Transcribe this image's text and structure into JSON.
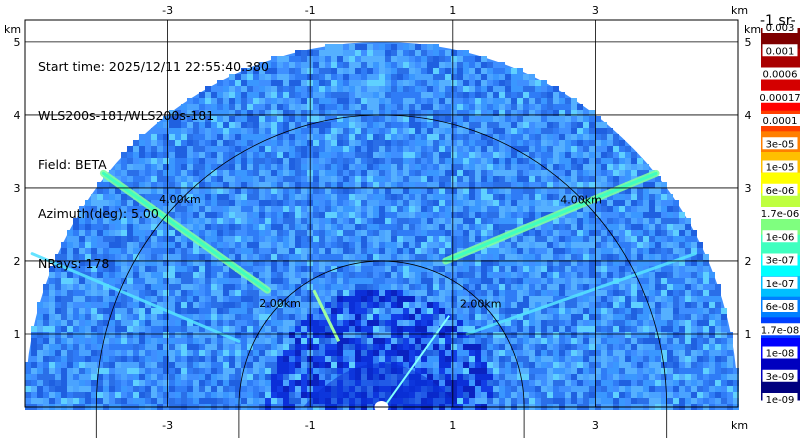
{
  "info": {
    "start_time": "Start time: 2025/12/11 22:55:40.380",
    "instrument": "WLS200s-181/WLS200s-181",
    "field": "Field: BETA",
    "azimuth": "Azimuth(deg): 5.00",
    "nrays": "NRays: 178"
  },
  "chart_data": {
    "type": "heatmap",
    "subtype": "RHI lidar sector plot",
    "x_unit": "km",
    "y_unit": "km",
    "xlim": [
      -5.0,
      5.0
    ],
    "ylim": [
      0.0,
      5.3
    ],
    "x_ticks": [
      -3,
      -1,
      1,
      3
    ],
    "x_tick_labels": [
      "-3",
      "-1",
      "1",
      "3"
    ],
    "y_ticks": [
      1,
      2,
      3,
      4,
      5
    ],
    "y_tick_labels": [
      "1",
      "2",
      "3",
      "4",
      "5"
    ],
    "grid": true,
    "max_range_km": 5.0,
    "range_rings": [
      {
        "radius_km": 2.0,
        "label": "2.00km"
      },
      {
        "radius_km": 4.0,
        "label": "4.00km"
      }
    ],
    "colorbar": {
      "title": "-1 sr-",
      "scale": "log",
      "ticks": [
        "0.003",
        "0.001",
        "0.0006",
        "0.00017",
        "0.0001",
        "3e-05",
        "1e-05",
        "6e-06",
        "1.7e-06",
        "1e-06",
        "3e-07",
        "1e-07",
        "6e-08",
        "1.7e-08",
        "1e-08",
        "3e-09",
        "1e-09"
      ],
      "colors": [
        "#7f0000",
        "#aa0000",
        "#d40000",
        "#ff0000",
        "#ff3f00",
        "#ff7f00",
        "#ffbf00",
        "#ffff00",
        "#bfff3f",
        "#7fff7f",
        "#3fffbf",
        "#00ffff",
        "#00bfff",
        "#007fff",
        "#003fff",
        "#0000ff",
        "#0000bf",
        "#00007f"
      ]
    },
    "features": [
      {
        "name": "left layer",
        "from_km": [
          -3.9,
          3.2
        ],
        "to_km": [
          -1.6,
          1.6
        ],
        "level": "1e-06"
      },
      {
        "name": "right layer",
        "from_km": [
          0.9,
          2.0
        ],
        "to_km": [
          3.85,
          3.2
        ],
        "level": "1e-06"
      },
      {
        "name": "left lower streak",
        "from_km": [
          -4.9,
          2.1
        ],
        "to_km": [
          -2.0,
          0.9
        ],
        "level": "3e-07"
      },
      {
        "name": "right lower streak",
        "from_km": [
          1.2,
          1.0
        ],
        "to_km": [
          4.4,
          2.1
        ],
        "level": "3e-07"
      }
    ]
  }
}
